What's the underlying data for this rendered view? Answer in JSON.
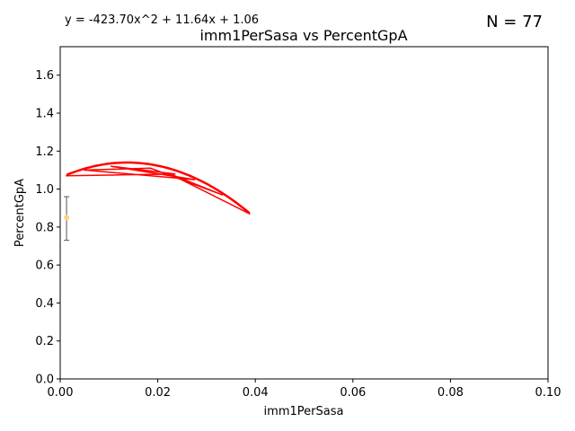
{
  "chart_data": {
    "type": "line",
    "title": "imm1PerSasa vs PercentGpA",
    "xlabel": "imm1PerSasa",
    "ylabel": "PercentGpA",
    "xlim": [
      0,
      0.1
    ],
    "ylim": [
      0,
      1.75
    ],
    "xticks": [
      "0.00",
      "0.02",
      "0.04",
      "0.06",
      "0.08",
      "0.10"
    ],
    "yticks": [
      "0.0",
      "0.2",
      "0.4",
      "0.6",
      "0.8",
      "1.0",
      "1.2",
      "1.4",
      "1.6"
    ],
    "grid": false,
    "equation": "y = -423.70x^2 + 11.64x + 1.06",
    "n_label": "N = 77",
    "fit": {
      "a": -423.7,
      "b": 11.64,
      "c": 1.06
    },
    "series": [
      {
        "color": "#ff0000",
        "x": [
          0.0013,
          0.0235,
          0.0105,
          0.0275,
          0.005,
          0.0185,
          0.0332,
          0.0225,
          0.0388
        ],
        "y": [
          1.07,
          1.08,
          1.12,
          1.05,
          1.1,
          1.11,
          0.97,
          1.08,
          0.87
        ]
      }
    ],
    "errorbar": {
      "x": 0.0013,
      "y": 0.85,
      "yerr_low": 0.73,
      "yerr_high": 0.96,
      "color": "#ffd27f",
      "bar_color": "#555555"
    }
  }
}
